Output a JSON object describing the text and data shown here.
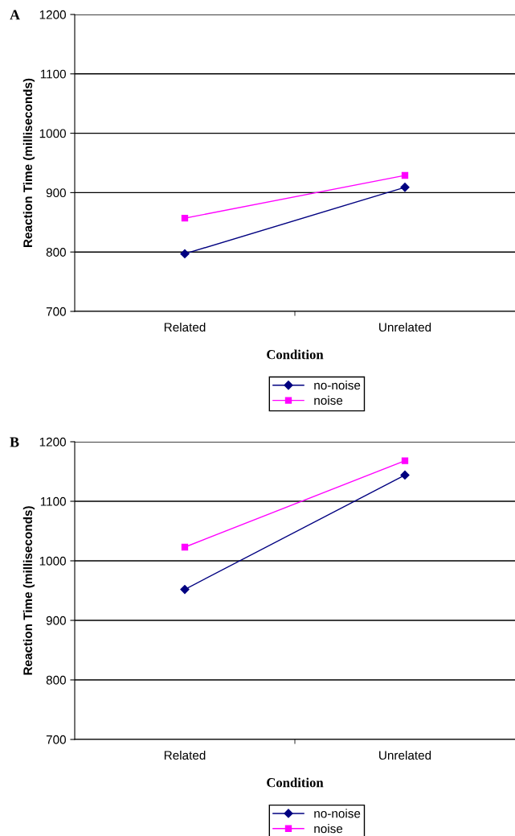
{
  "chart_data": [
    {
      "type": "line",
      "title": "A",
      "xlabel": "Condition",
      "ylabel": "Reaction Time (milliseconds)",
      "categories": [
        "Related",
        "Unrelated"
      ],
      "series": [
        {
          "name": "no-noise",
          "color": "#000080",
          "values": [
            797,
            909
          ],
          "marker": "diamond"
        },
        {
          "name": "noise",
          "color": "#ff00ff",
          "values": [
            857,
            929
          ],
          "marker": "square"
        }
      ],
      "ylim": [
        700,
        1200
      ],
      "yticks": [
        700,
        800,
        900,
        1000,
        1100,
        1200
      ],
      "grid": "y",
      "legend": "bottom"
    },
    {
      "type": "line",
      "title": "B",
      "xlabel": "Condition",
      "ylabel": "Reaction Time (milliseconds)",
      "categories": [
        "Related",
        "Unrelated"
      ],
      "series": [
        {
          "name": "no-noise",
          "color": "#000080",
          "values": [
            952,
            1144
          ],
          "marker": "diamond"
        },
        {
          "name": "noise",
          "color": "#ff00ff",
          "values": [
            1023,
            1168
          ],
          "marker": "square"
        }
      ],
      "ylim": [
        700,
        1200
      ],
      "yticks": [
        700,
        800,
        900,
        1000,
        1100,
        1200
      ],
      "grid": "y",
      "legend": "bottom"
    }
  ]
}
